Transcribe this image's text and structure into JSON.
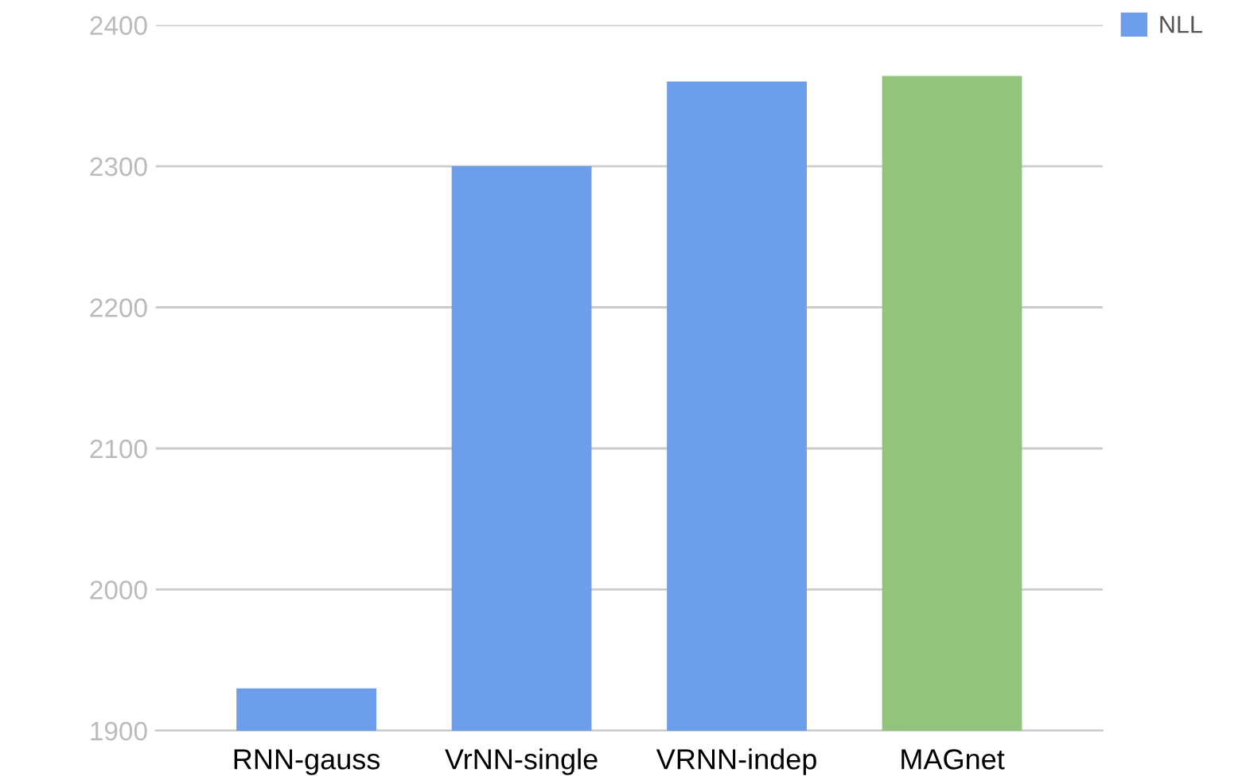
{
  "chart_data": {
    "type": "bar",
    "categories": [
      "RNN-gauss",
      "VrNN-single",
      "VRNN-indep",
      "MAGnet"
    ],
    "series": [
      {
        "name": "NLL",
        "color": "#6d9eeb",
        "colors": [
          "#6d9eeb",
          "#6d9eeb",
          "#6d9eeb",
          "#93c47d"
        ],
        "values": [
          1930,
          2300,
          2360,
          2364
        ]
      }
    ],
    "ylim": [
      1900,
      2400
    ],
    "yticks": [
      1900,
      2000,
      2100,
      2200,
      2300,
      2400
    ],
    "grid": "y",
    "legend": "top right"
  }
}
